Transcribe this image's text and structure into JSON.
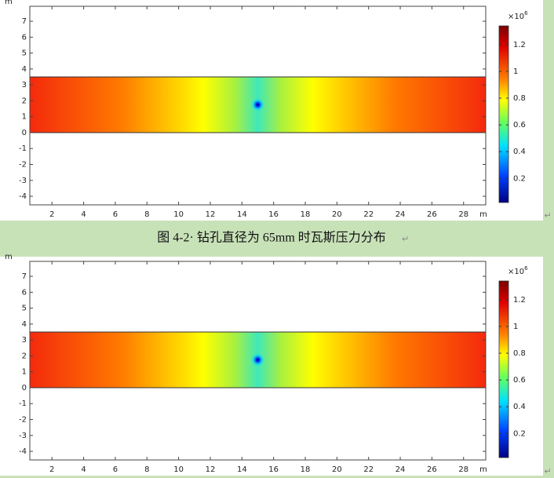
{
  "figures": [
    {
      "x_unit": "m",
      "y_unit": "m",
      "xlim": [
        0.6,
        29.4
      ],
      "ylim": [
        -4.54,
        7.94
      ],
      "xticks": [
        2,
        4,
        6,
        8,
        10,
        12,
        14,
        16,
        18,
        20,
        22,
        24,
        26,
        28
      ],
      "yticks": [
        7,
        6,
        5,
        4,
        3,
        2,
        1,
        0,
        -1,
        -2,
        -3,
        -4
      ],
      "colorbar": {
        "multiplier": "×10",
        "exponent": "6",
        "range": [
          0.02,
          1.34
        ],
        "ticks": [
          1.2,
          1,
          0.8,
          0.6,
          0.4,
          0.2
        ]
      }
    },
    {
      "x_unit": "m",
      "y_unit": "m",
      "xlim": [
        0.6,
        29.4
      ],
      "ylim": [
        -4.54,
        7.94
      ],
      "xticks": [
        2,
        4,
        6,
        8,
        10,
        12,
        14,
        16,
        18,
        20,
        22,
        24,
        26,
        28
      ],
      "yticks": [
        7,
        6,
        5,
        4,
        3,
        2,
        1,
        0,
        -1,
        -2,
        -3,
        -4
      ],
      "colorbar": {
        "multiplier": "×10",
        "exponent": "6",
        "range": [
          0.02,
          1.34
        ],
        "ticks": [
          1.2,
          1,
          0.8,
          0.6,
          0.4,
          0.2
        ]
      }
    }
  ],
  "caption": "图 4-2· 钻孔直径为 65mm 时瓦斯压力分布",
  "paragraph_mark": "↵"
}
